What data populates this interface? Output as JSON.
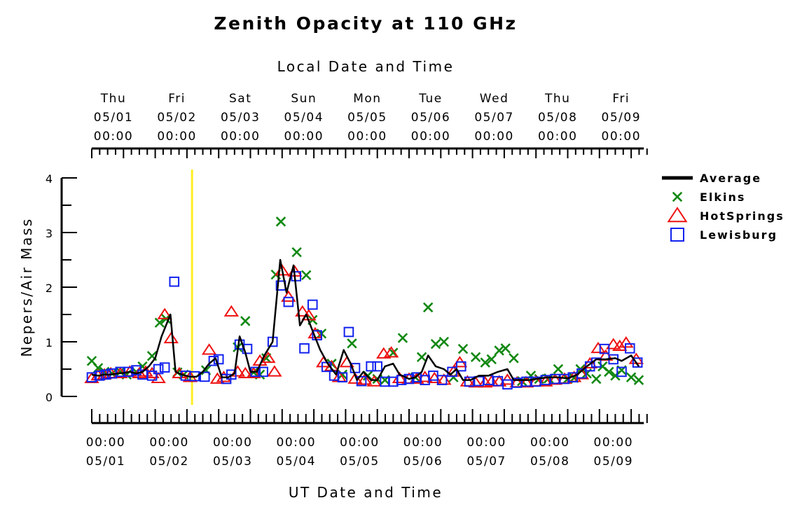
{
  "chart_data": {
    "type": "line",
    "title": "Zenith Opacity at 110 GHz",
    "top_axis_label": "Local Date and Time",
    "xlabel": "UT Date and Time",
    "ylabel": "Nepers/Air Mass",
    "ylim": [
      0,
      4
    ],
    "yticks": [
      "0",
      "1",
      "2",
      "3",
      "4"
    ],
    "xlim_days_ut": [
      0,
      8.7
    ],
    "top_ticks": [
      {
        "day": "Thu",
        "date": "05/01",
        "time": "00:00"
      },
      {
        "day": "Fri",
        "date": "05/02",
        "time": "00:00"
      },
      {
        "day": "Sat",
        "date": "05/03",
        "time": "00:00"
      },
      {
        "day": "Sun",
        "date": "05/04",
        "time": "00:00"
      },
      {
        "day": "Mon",
        "date": "05/05",
        "time": "00:00"
      },
      {
        "day": "Tue",
        "date": "05/06",
        "time": "00:00"
      },
      {
        "day": "Wed",
        "date": "05/07",
        "time": "00:00"
      },
      {
        "day": "Thu",
        "date": "05/08",
        "time": "00:00"
      },
      {
        "day": "Fri",
        "date": "05/09",
        "time": "00:00"
      }
    ],
    "bottom_ticks": [
      {
        "time": "00:00",
        "date": "05/01"
      },
      {
        "time": "00:00",
        "date": "05/02"
      },
      {
        "time": "00:00",
        "date": "05/03"
      },
      {
        "time": "00:00",
        "date": "05/04"
      },
      {
        "time": "00:00",
        "date": "05/05"
      },
      {
        "time": "00:00",
        "date": "05/06"
      },
      {
        "time": "00:00",
        "date": "05/07"
      },
      {
        "time": "00:00",
        "date": "05/08"
      },
      {
        "time": "00:00",
        "date": "05/09"
      }
    ],
    "marker_line_day": 1.58,
    "marker_line_color": "#ffee22",
    "legend_position": "right",
    "series": [
      {
        "name": "Average",
        "kind": "line",
        "color": "#000000",
        "points": [
          [
            0,
            0.4
          ],
          [
            0.1,
            0.38
          ],
          [
            0.2,
            0.4
          ],
          [
            0.3,
            0.4
          ],
          [
            0.4,
            0.42
          ],
          [
            0.5,
            0.43
          ],
          [
            0.6,
            0.45
          ],
          [
            0.7,
            0.42
          ],
          [
            0.8,
            0.45
          ],
          [
            0.9,
            0.55
          ],
          [
            1.0,
            0.7
          ],
          [
            1.1,
            1.1
          ],
          [
            1.24,
            1.5
          ],
          [
            1.32,
            0.45
          ],
          [
            1.42,
            0.4
          ],
          [
            1.55,
            0.36
          ],
          [
            1.65,
            0.36
          ],
          [
            1.75,
            0.45
          ],
          [
            1.85,
            0.6
          ],
          [
            1.95,
            0.7
          ],
          [
            2.05,
            0.35
          ],
          [
            2.15,
            0.35
          ],
          [
            2.25,
            0.42
          ],
          [
            2.33,
            1.1
          ],
          [
            2.42,
            0.8
          ],
          [
            2.5,
            0.45
          ],
          [
            2.6,
            0.45
          ],
          [
            2.72,
            0.75
          ],
          [
            2.85,
            1.0
          ],
          [
            2.97,
            2.5
          ],
          [
            3.07,
            1.9
          ],
          [
            3.18,
            2.4
          ],
          [
            3.28,
            1.3
          ],
          [
            3.38,
            1.5
          ],
          [
            3.48,
            1.2
          ],
          [
            3.6,
            0.85
          ],
          [
            3.72,
            0.6
          ],
          [
            3.85,
            0.4
          ],
          [
            3.97,
            0.85
          ],
          [
            4.08,
            0.6
          ],
          [
            4.18,
            0.3
          ],
          [
            4.28,
            0.45
          ],
          [
            4.4,
            0.3
          ],
          [
            4.5,
            0.3
          ],
          [
            4.62,
            0.55
          ],
          [
            4.75,
            0.6
          ],
          [
            4.85,
            0.4
          ],
          [
            5.0,
            0.32
          ],
          [
            5.1,
            0.35
          ],
          [
            5.2,
            0.45
          ],
          [
            5.3,
            0.75
          ],
          [
            5.42,
            0.55
          ],
          [
            5.55,
            0.5
          ],
          [
            5.65,
            0.4
          ],
          [
            5.75,
            0.5
          ],
          [
            5.85,
            0.3
          ],
          [
            5.97,
            0.3
          ],
          [
            6.1,
            0.38
          ],
          [
            6.25,
            0.38
          ],
          [
            6.4,
            0.45
          ],
          [
            6.55,
            0.5
          ],
          [
            6.65,
            0.3
          ],
          [
            6.75,
            0.3
          ],
          [
            6.9,
            0.3
          ],
          [
            7.05,
            0.33
          ],
          [
            7.2,
            0.35
          ],
          [
            7.35,
            0.35
          ],
          [
            7.5,
            0.33
          ],
          [
            7.65,
            0.4
          ],
          [
            7.8,
            0.55
          ],
          [
            7.95,
            0.68
          ],
          [
            8.1,
            0.68
          ],
          [
            8.25,
            0.7
          ],
          [
            8.35,
            0.65
          ],
          [
            8.5,
            0.75
          ],
          [
            8.62,
            0.55
          ]
        ]
      },
      {
        "name": "Elkins",
        "kind": "x",
        "color": "#118811",
        "points": [
          [
            0.0,
            0.65
          ],
          [
            0.1,
            0.52
          ],
          [
            0.2,
            0.45
          ],
          [
            0.32,
            0.42
          ],
          [
            0.45,
            0.45
          ],
          [
            0.55,
            0.4
          ],
          [
            0.7,
            0.45
          ],
          [
            0.8,
            0.55
          ],
          [
            0.95,
            0.74
          ],
          [
            1.07,
            1.35
          ],
          [
            1.17,
            1.42
          ],
          [
            1.35,
            0.44
          ],
          [
            1.45,
            0.4
          ],
          [
            1.8,
            0.48
          ],
          [
            2.3,
            0.9
          ],
          [
            2.42,
            1.38
          ],
          [
            2.55,
            0.44
          ],
          [
            2.65,
            0.4
          ],
          [
            2.75,
            0.7
          ],
          [
            2.9,
            2.23
          ],
          [
            2.98,
            3.2
          ],
          [
            3.23,
            2.64
          ],
          [
            3.38,
            2.22
          ],
          [
            3.48,
            1.4
          ],
          [
            3.62,
            1.15
          ],
          [
            3.78,
            0.6
          ],
          [
            3.95,
            0.4
          ],
          [
            4.1,
            0.97
          ],
          [
            4.35,
            0.38
          ],
          [
            4.5,
            0.32
          ],
          [
            4.62,
            0.3
          ],
          [
            4.75,
            0.8
          ],
          [
            4.9,
            1.07
          ],
          [
            5.1,
            0.35
          ],
          [
            5.2,
            0.72
          ],
          [
            5.3,
            1.63
          ],
          [
            5.42,
            0.96
          ],
          [
            5.55,
            1.0
          ],
          [
            5.7,
            0.35
          ],
          [
            5.85,
            0.87
          ],
          [
            6.05,
            0.72
          ],
          [
            6.2,
            0.62
          ],
          [
            6.3,
            0.68
          ],
          [
            6.42,
            0.84
          ],
          [
            6.52,
            0.88
          ],
          [
            6.65,
            0.7
          ],
          [
            6.78,
            0.28
          ],
          [
            6.92,
            0.38
          ],
          [
            7.05,
            0.32
          ],
          [
            7.2,
            0.33
          ],
          [
            7.35,
            0.5
          ],
          [
            7.5,
            0.32
          ],
          [
            7.6,
            0.34
          ],
          [
            7.7,
            0.5
          ],
          [
            7.8,
            0.42
          ],
          [
            7.95,
            0.32
          ],
          [
            8.05,
            0.55
          ],
          [
            8.15,
            0.45
          ],
          [
            8.25,
            0.38
          ],
          [
            8.35,
            0.48
          ],
          [
            8.5,
            0.35
          ],
          [
            8.62,
            0.3
          ]
        ]
      },
      {
        "name": "HotSprings",
        "kind": "triangle",
        "color": "#ee1111",
        "points": [
          [
            0.0,
            0.33
          ],
          [
            0.1,
            0.38
          ],
          [
            0.2,
            0.4
          ],
          [
            0.3,
            0.42
          ],
          [
            0.45,
            0.42
          ],
          [
            0.6,
            0.45
          ],
          [
            0.75,
            0.42
          ],
          [
            0.85,
            0.45
          ],
          [
            0.95,
            0.42
          ],
          [
            1.05,
            0.33
          ],
          [
            1.15,
            1.5
          ],
          [
            1.25,
            1.06
          ],
          [
            1.38,
            0.42
          ],
          [
            1.55,
            0.35
          ],
          [
            1.85,
            0.85
          ],
          [
            1.98,
            0.32
          ],
          [
            2.08,
            0.35
          ],
          [
            2.2,
            1.55
          ],
          [
            2.3,
            0.45
          ],
          [
            2.42,
            0.42
          ],
          [
            2.55,
            0.42
          ],
          [
            2.65,
            0.65
          ],
          [
            2.78,
            0.7
          ],
          [
            2.88,
            0.45
          ],
          [
            3.0,
            2.3
          ],
          [
            3.1,
            1.82
          ],
          [
            3.2,
            2.28
          ],
          [
            3.32,
            1.55
          ],
          [
            3.42,
            1.48
          ],
          [
            3.52,
            1.15
          ],
          [
            3.65,
            0.62
          ],
          [
            3.78,
            0.55
          ],
          [
            3.9,
            0.35
          ],
          [
            4.02,
            0.62
          ],
          [
            4.15,
            0.32
          ],
          [
            4.3,
            0.3
          ],
          [
            4.45,
            0.27
          ],
          [
            4.6,
            0.78
          ],
          [
            4.72,
            0.8
          ],
          [
            4.85,
            0.33
          ],
          [
            5.0,
            0.32
          ],
          [
            5.12,
            0.32
          ],
          [
            5.25,
            0.35
          ],
          [
            5.4,
            0.33
          ],
          [
            5.55,
            0.3
          ],
          [
            5.7,
            0.45
          ],
          [
            5.8,
            0.62
          ],
          [
            5.92,
            0.27
          ],
          [
            6.05,
            0.25
          ],
          [
            6.2,
            0.25
          ],
          [
            6.3,
            0.27
          ],
          [
            6.42,
            0.27
          ],
          [
            6.55,
            0.3
          ],
          [
            6.7,
            0.25
          ],
          [
            6.85,
            0.25
          ],
          [
            7.0,
            0.27
          ],
          [
            7.15,
            0.27
          ],
          [
            7.3,
            0.3
          ],
          [
            7.45,
            0.32
          ],
          [
            7.6,
            0.35
          ],
          [
            7.72,
            0.4
          ],
          [
            7.85,
            0.6
          ],
          [
            7.98,
            0.88
          ],
          [
            8.1,
            0.74
          ],
          [
            8.22,
            0.95
          ],
          [
            8.32,
            0.92
          ],
          [
            8.42,
            0.98
          ],
          [
            8.58,
            0.68
          ]
        ]
      },
      {
        "name": "Lewisburg",
        "kind": "square",
        "color": "#1122ee",
        "points": [
          [
            0.0,
            0.35
          ],
          [
            0.12,
            0.38
          ],
          [
            0.22,
            0.4
          ],
          [
            0.32,
            0.42
          ],
          [
            0.45,
            0.45
          ],
          [
            0.58,
            0.45
          ],
          [
            0.7,
            0.48
          ],
          [
            0.8,
            0.4
          ],
          [
            0.95,
            0.38
          ],
          [
            1.05,
            0.5
          ],
          [
            1.15,
            0.53
          ],
          [
            1.3,
            2.1
          ],
          [
            1.48,
            0.38
          ],
          [
            1.62,
            0.37
          ],
          [
            1.78,
            0.36
          ],
          [
            1.92,
            0.65
          ],
          [
            2.0,
            0.68
          ],
          [
            2.12,
            0.32
          ],
          [
            2.2,
            0.4
          ],
          [
            2.33,
            0.95
          ],
          [
            2.45,
            0.87
          ],
          [
            2.58,
            0.45
          ],
          [
            2.7,
            0.45
          ],
          [
            2.85,
            1.0
          ],
          [
            2.98,
            2.03
          ],
          [
            3.1,
            1.73
          ],
          [
            3.22,
            2.2
          ],
          [
            3.35,
            0.88
          ],
          [
            3.48,
            1.68
          ],
          [
            3.55,
            1.12
          ],
          [
            3.7,
            0.54
          ],
          [
            3.82,
            0.38
          ],
          [
            3.95,
            0.35
          ],
          [
            4.05,
            1.18
          ],
          [
            4.15,
            0.52
          ],
          [
            4.25,
            0.28
          ],
          [
            4.4,
            0.55
          ],
          [
            4.5,
            0.55
          ],
          [
            4.62,
            0.27
          ],
          [
            4.75,
            0.27
          ],
          [
            4.88,
            0.3
          ],
          [
            5.0,
            0.32
          ],
          [
            5.12,
            0.35
          ],
          [
            5.25,
            0.3
          ],
          [
            5.38,
            0.38
          ],
          [
            5.52,
            0.3
          ],
          [
            5.68,
            0.45
          ],
          [
            5.82,
            0.55
          ],
          [
            5.95,
            0.27
          ],
          [
            6.1,
            0.28
          ],
          [
            6.25,
            0.3
          ],
          [
            6.4,
            0.28
          ],
          [
            6.55,
            0.22
          ],
          [
            6.7,
            0.25
          ],
          [
            6.85,
            0.27
          ],
          [
            7.0,
            0.27
          ],
          [
            7.15,
            0.3
          ],
          [
            7.3,
            0.32
          ],
          [
            7.45,
            0.32
          ],
          [
            7.58,
            0.35
          ],
          [
            7.72,
            0.42
          ],
          [
            7.85,
            0.55
          ],
          [
            7.95,
            0.62
          ],
          [
            8.08,
            0.87
          ],
          [
            8.22,
            0.68
          ],
          [
            8.35,
            0.45
          ],
          [
            8.48,
            0.88
          ],
          [
            8.6,
            0.62
          ]
        ]
      }
    ]
  }
}
